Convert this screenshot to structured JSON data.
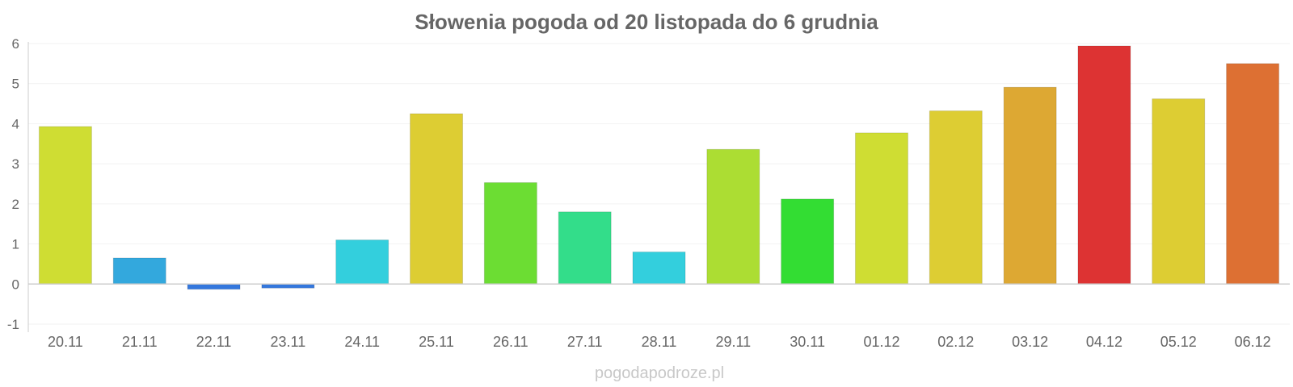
{
  "chart_data": {
    "type": "bar",
    "title": "Słowenia pogoda od 20 listopada do 6 grudnia",
    "xlabel": "",
    "ylabel": "",
    "ylim": [
      -1,
      6
    ],
    "yticks": [
      "6",
      "5",
      "4",
      "3",
      "2",
      "1",
      "0",
      "-1"
    ],
    "grid": true,
    "categories": [
      "20.11",
      "21.11",
      "22.11",
      "23.11",
      "24.11",
      "25.11",
      "26.11",
      "27.11",
      "28.11",
      "29.11",
      "30.11",
      "01.12",
      "02.12",
      "03.12",
      "04.12",
      "05.12",
      "06.12"
    ],
    "values": [
      3.93,
      0.65,
      -0.13,
      -0.1,
      1.1,
      4.25,
      2.53,
      1.8,
      0.8,
      3.36,
      2.12,
      3.77,
      4.32,
      4.91,
      5.94,
      4.62,
      5.5
    ],
    "colors": [
      "#cfdd33",
      "#33a8dd",
      "#3377dd",
      "#3377dd",
      "#33cfdd",
      "#ddcd33",
      "#6cdd33",
      "#33dd8a",
      "#33cfdd",
      "#acdd33",
      "#33dd33",
      "#cfdd33",
      "#ddcd33",
      "#dda833",
      "#dd3333",
      "#ddcd33",
      "#dd7033"
    ]
  },
  "watermark": "pogodapodroze.pl"
}
